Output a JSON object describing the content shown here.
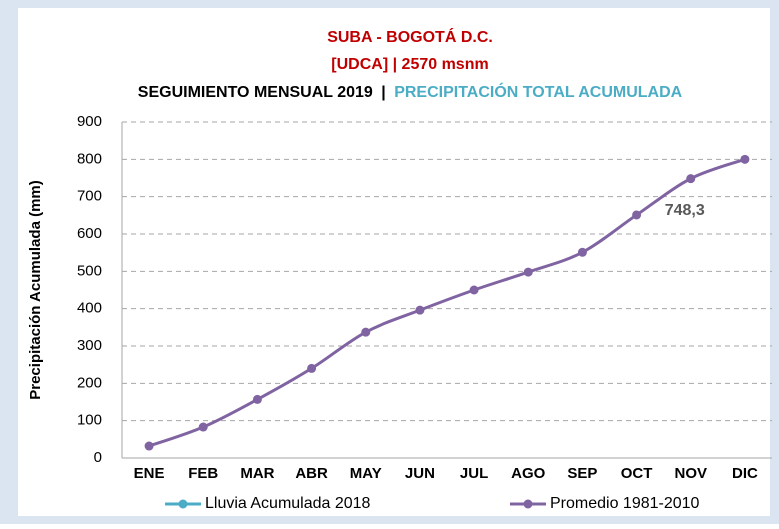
{
  "chart_data": {
    "type": "line",
    "title": "SUBA - BOGOTÁ D.C.",
    "subtitle": "[UDCA] | 2570 msnm",
    "heading": [
      "SEGUIMIENTO MENSUAL 2019",
      "|",
      "PRECIPITACIÓN TOTAL ACUMULADA"
    ],
    "ylabel": "Precipitación Acumulada (mm)",
    "categories": [
      "ENE",
      "FEB",
      "MAR",
      "ABR",
      "MAY",
      "JUN",
      "JUL",
      "AGO",
      "SEP",
      "OCT",
      "NOV",
      "DIC"
    ],
    "series": [
      {
        "name": "Lluvia Acumulada 2018",
        "color": "#4bacc6",
        "values": [
          null,
          null,
          null,
          null,
          null,
          null,
          null,
          null,
          null,
          null,
          null,
          null
        ]
      },
      {
        "name": "Promedio 1981-2010",
        "color": "#8064a2",
        "values": [
          32,
          83,
          157,
          240,
          337,
          396,
          450,
          498,
          551,
          651,
          748.3,
          800
        ],
        "value_labels": [
          null,
          null,
          null,
          null,
          null,
          null,
          null,
          null,
          null,
          null,
          "748,3",
          null
        ]
      }
    ],
    "ylim": [
      0,
      900
    ],
    "yticks": [
      0,
      100,
      200,
      300,
      400,
      500,
      600,
      700,
      800,
      900
    ],
    "grid": true
  }
}
